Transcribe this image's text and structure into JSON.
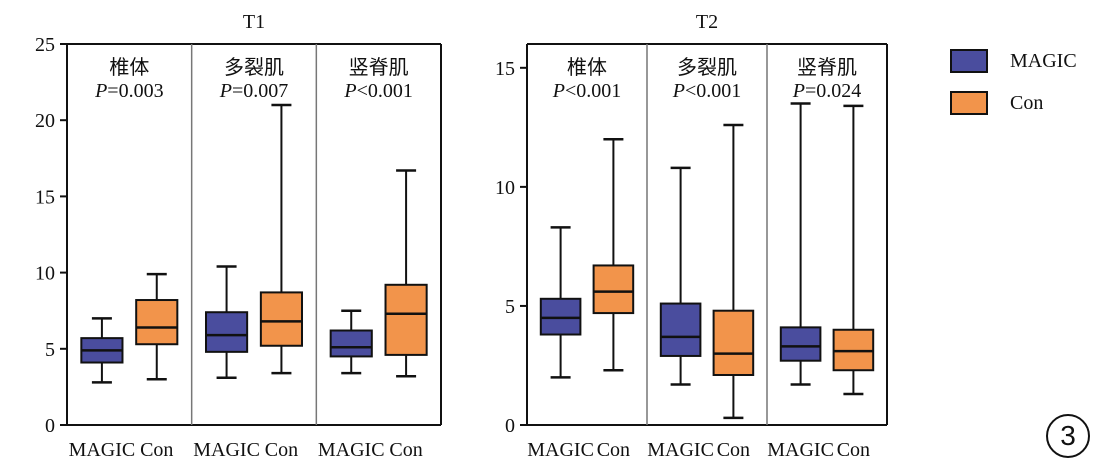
{
  "colors": {
    "magic": "#4a4d9e",
    "con": "#f2944b",
    "axis": "#111111",
    "divider": "#777777"
  },
  "legend": {
    "items": [
      {
        "label": "MAGIC",
        "color": "#4a4d9e"
      },
      {
        "label": "Con",
        "color": "#f2944b"
      }
    ]
  },
  "figure_number": "3",
  "chart_data": [
    {
      "type": "box",
      "title": "T1",
      "ylim": [
        0,
        25
      ],
      "yticks": [
        "0",
        "5",
        "10",
        "15",
        "20",
        "25"
      ],
      "ytick_values": [
        0,
        5,
        10,
        15,
        20,
        25
      ],
      "x_tick_labels": [
        "MAGIC",
        "Con",
        "MAGIC",
        "Con",
        "MAGIC",
        "Con"
      ],
      "groups": [
        {
          "name": "椎体",
          "p_label": "P",
          "p_text": "=0.003",
          "boxes": [
            {
              "series": "MAGIC",
              "min": 2.8,
              "q1": 4.1,
              "median": 4.9,
              "q3": 5.7,
              "max": 7.0
            },
            {
              "series": "Con",
              "min": 3.0,
              "q1": 5.3,
              "median": 6.4,
              "q3": 8.2,
              "max": 9.9
            }
          ]
        },
        {
          "name": "多裂肌",
          "p_label": "P",
          "p_text": "=0.007",
          "boxes": [
            {
              "series": "MAGIC",
              "min": 3.1,
              "q1": 4.8,
              "median": 5.9,
              "q3": 7.4,
              "max": 10.4
            },
            {
              "series": "Con",
              "min": 3.4,
              "q1": 5.2,
              "median": 6.8,
              "q3": 8.7,
              "max": 21.0
            }
          ]
        },
        {
          "name": "竖脊肌",
          "p_label": "P",
          "p_text": "<0.001",
          "boxes": [
            {
              "series": "MAGIC",
              "min": 3.4,
              "q1": 4.5,
              "median": 5.1,
              "q3": 6.2,
              "max": 7.5
            },
            {
              "series": "Con",
              "min": 3.2,
              "q1": 4.6,
              "median": 7.3,
              "q3": 9.2,
              "max": 16.7
            }
          ]
        }
      ]
    },
    {
      "type": "box",
      "title": "T2",
      "ylim": [
        0,
        16
      ],
      "yticks": [
        "0",
        "5",
        "10",
        "15"
      ],
      "ytick_values": [
        0,
        5,
        10,
        15
      ],
      "x_tick_labels": [
        "MAGIC",
        "Con",
        "MAGIC",
        "Con",
        "MAGIC",
        "Con"
      ],
      "groups": [
        {
          "name": "椎体",
          "p_label": "P",
          "p_text": "<0.001",
          "boxes": [
            {
              "series": "MAGIC",
              "min": 2.0,
              "q1": 3.8,
              "median": 4.5,
              "q3": 5.3,
              "max": 8.3
            },
            {
              "series": "Con",
              "min": 2.3,
              "q1": 4.7,
              "median": 5.6,
              "q3": 6.7,
              "max": 12.0
            }
          ]
        },
        {
          "name": "多裂肌",
          "p_label": "P",
          "p_text": "<0.001",
          "boxes": [
            {
              "series": "MAGIC",
              "min": 1.7,
              "q1": 2.9,
              "median": 3.7,
              "q3": 5.1,
              "max": 10.8
            },
            {
              "series": "Con",
              "min": 0.3,
              "q1": 2.1,
              "median": 3.0,
              "q3": 4.8,
              "max": 12.6
            }
          ]
        },
        {
          "name": "竖脊肌",
          "p_label": "P",
          "p_text": "=0.024",
          "boxes": [
            {
              "series": "MAGIC",
              "min": 1.7,
              "q1": 2.7,
              "median": 3.3,
              "q3": 4.1,
              "max": 13.5
            },
            {
              "series": "Con",
              "min": 1.3,
              "q1": 2.3,
              "median": 3.1,
              "q3": 4.0,
              "max": 13.4
            }
          ]
        }
      ]
    }
  ]
}
